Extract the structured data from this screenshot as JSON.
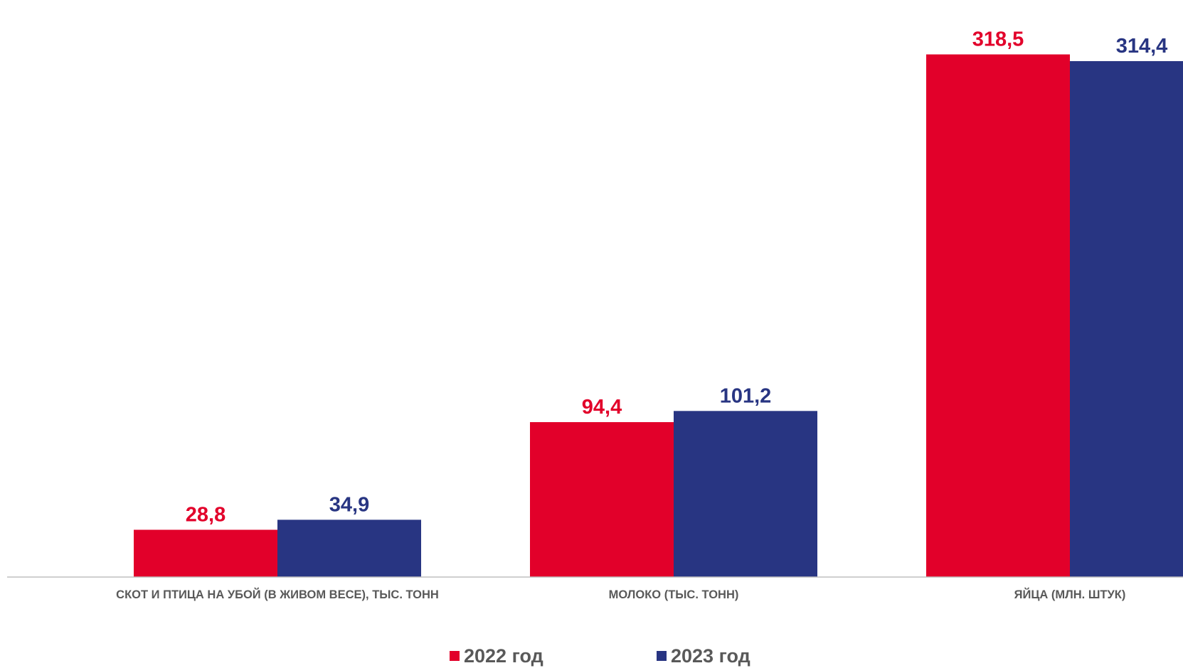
{
  "chart_data": {
    "type": "bar",
    "categories": [
      "СКОТ И ПТИЦА НА УБОЙ (В ЖИВОМ ВЕСЕ), ТЫС. ТОНН",
      "МОЛОКО (ТЫС. ТОНН)",
      "ЯЙЦА (МЛН. ШТУК)"
    ],
    "series": [
      {
        "name": "2022 год",
        "color": "#e2002a",
        "values": [
          28.8,
          94.4,
          318.5
        ],
        "labels": [
          "28,8",
          "94,4",
          "318,5"
        ]
      },
      {
        "name": "2023 год",
        "color": "#283582",
        "values": [
          34.9,
          101.2,
          314.4
        ],
        "labels": [
          "34,9",
          "101,2",
          "314,4"
        ]
      }
    ],
    "ylim": [
      0,
      330
    ],
    "grid": false,
    "legend_position": "bottom",
    "axis_color": "#bfbfbf"
  }
}
